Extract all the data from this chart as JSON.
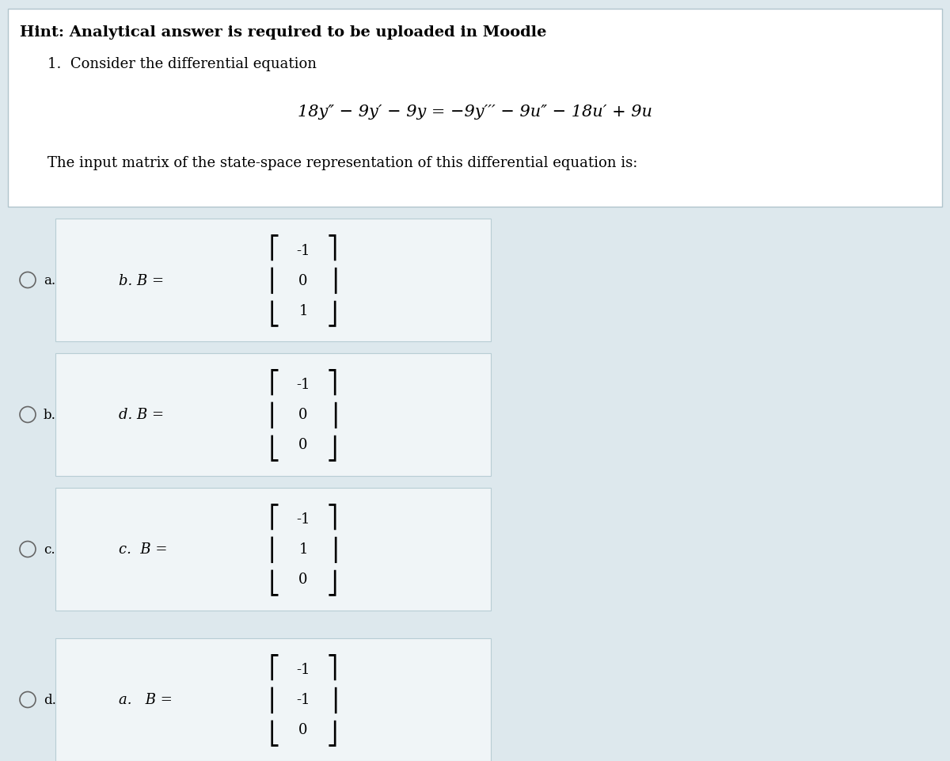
{
  "background_color": "#dde8ed",
  "white_box_color": "#ffffff",
  "option_box_color": "#f0f5f7",
  "title_text": "Hint: Analytical answer is required to be uploaded in Moodle",
  "item_text": "1.  Consider the differential equation",
  "equation": "18y″ − 9y′ − 9y = −9y′′′ − 9u″ − 18u′ + 9u",
  "description": "The input matrix of the state-space representation of this differential equation is:",
  "options": [
    {
      "label": "a.",
      "inner_label": "b. B =",
      "matrix": [
        "-1",
        "0",
        "1"
      ]
    },
    {
      "label": "b.",
      "inner_label": "d. B =",
      "matrix": [
        "-1",
        "0",
        "0"
      ]
    },
    {
      "label": "c.",
      "inner_label": "c.  B =",
      "matrix": [
        "-1",
        "1",
        "0"
      ]
    },
    {
      "label": "d.",
      "inner_label": "a.   B =",
      "matrix": [
        "-1",
        "-1",
        "0"
      ]
    }
  ]
}
